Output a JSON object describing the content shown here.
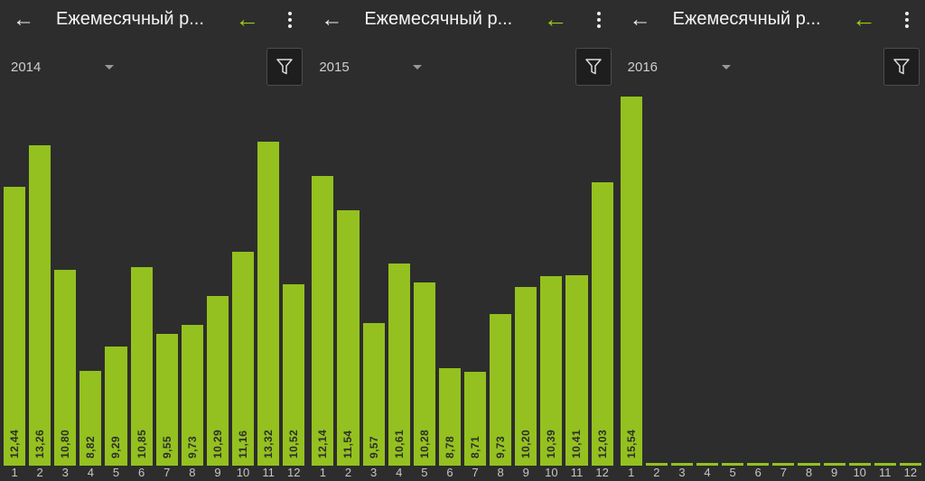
{
  "colors": {
    "background": "#2d2d2d",
    "bar_green": "#94c11f",
    "accent_green": "#9bcb1b",
    "text_light": "#f5f5f5",
    "text_dim": "#c6c6c6"
  },
  "icons": {
    "back_arrow": "←",
    "accent_back_arrow": "←",
    "overflow_menu": "three-dot-vertical",
    "year_dropdown_caret": "chevron-down",
    "filter": "funnel-outline"
  },
  "panels": [
    {
      "title": "Ежемесячный р...",
      "year": "2014"
    },
    {
      "title": "Ежемесячный р...",
      "year": "2015"
    },
    {
      "title": "Ежемесячный р...",
      "year": "2016"
    }
  ],
  "chart_data": [
    {
      "type": "bar",
      "title": "2014",
      "categories": [
        "1",
        "2",
        "3",
        "4",
        "5",
        "6",
        "7",
        "8",
        "9",
        "10",
        "11",
        "12"
      ],
      "values": [
        12.44,
        13.26,
        10.8,
        8.82,
        9.29,
        10.85,
        9.55,
        9.73,
        10.29,
        11.16,
        13.32,
        10.52
      ],
      "value_labels": [
        "12,44",
        "13,26",
        "10,80",
        "8,82",
        "9,29",
        "10,85",
        "9,55",
        "9,73",
        "10,29",
        "11,16",
        "13,32",
        "10,52"
      ],
      "xlabel": "",
      "ylabel": "",
      "ylim": [
        6.95,
        14.25
      ],
      "grid": false,
      "legend": "none"
    },
    {
      "type": "bar",
      "title": "2015",
      "categories": [
        "1",
        "2",
        "3",
        "4",
        "5",
        "6",
        "7",
        "8",
        "9",
        "10",
        "11",
        "12"
      ],
      "values": [
        12.14,
        11.54,
        9.57,
        10.61,
        10.28,
        8.78,
        8.71,
        9.73,
        10.2,
        10.39,
        10.41,
        12.03
      ],
      "value_labels": [
        "12,14",
        "11,54",
        "9,57",
        "10,61",
        "10,28",
        "8,78",
        "8,71",
        "9,73",
        "10,20",
        "10,39",
        "10,41",
        "12,03"
      ],
      "xlabel": "",
      "ylabel": "",
      "ylim": [
        7.07,
        13.56
      ],
      "grid": false,
      "legend": "none"
    },
    {
      "type": "bar",
      "title": "2016",
      "categories": [
        "1",
        "2",
        "3",
        "4",
        "5",
        "6",
        "7",
        "8",
        "9",
        "10",
        "11",
        "12"
      ],
      "values": [
        15.54,
        0,
        0,
        0,
        0,
        0,
        0,
        0,
        0,
        0,
        0,
        0
      ],
      "value_labels": [
        "15,54",
        "",
        "",
        "",
        "",
        "",
        "",
        "",
        "",
        "",
        "",
        ""
      ],
      "xlabel": "",
      "ylabel": "",
      "ylim": [
        0,
        15.6
      ],
      "grid": false,
      "legend": "none"
    }
  ]
}
